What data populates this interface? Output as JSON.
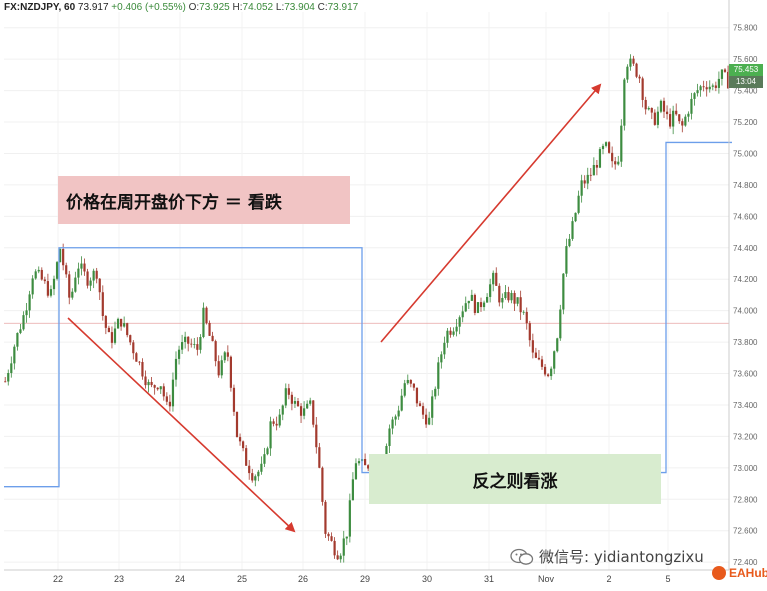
{
  "header": {
    "symbol": "FX:NZDJPY, 60",
    "last": "73.917",
    "change": "+0.406 (+0.55%)",
    "o_label": "O:",
    "o_value": "73.925",
    "h_label": "H:",
    "h_value": "74.052",
    "l_label": "L:",
    "l_value": "73.904",
    "c_label": "C:",
    "c_value": "73.917"
  },
  "annotations": {
    "bearish": "价格在周开盘价下方 ＝ 看跌",
    "bullish": "反之则看涨"
  },
  "price_badge": {
    "price": "75.453",
    "time": "13:04"
  },
  "watermark": {
    "wechat": "微信号: yidiantongzixu",
    "brand": "EAHub"
  },
  "colors": {
    "up": "#3d8c40",
    "down": "#a33a2e",
    "weekly_open": "#6c9eea",
    "arrow": "#d63a2f",
    "ref_line": "#e8a3a3",
    "badge_up": "#4caf50",
    "badge_time": "#5a7a5a"
  },
  "chart_data": {
    "type": "candlestick",
    "y_axis": {
      "range": [
        72.35,
        75.9
      ],
      "ticks": [
        "72.400",
        "72.600",
        "72.800",
        "73.000",
        "73.200",
        "73.400",
        "73.600",
        "73.800",
        "74.000",
        "74.200",
        "74.400",
        "74.600",
        "74.800",
        "75.000",
        "75.200",
        "75.400",
        "75.600",
        "75.800"
      ]
    },
    "x_axis": {
      "ticks": [
        "22",
        "23",
        "24",
        "25",
        "26",
        "29",
        "30",
        "31",
        "Nov",
        "2",
        "5"
      ]
    },
    "price_path": [
      [
        0,
        73.55
      ],
      [
        10,
        73.8
      ],
      [
        20,
        74.0
      ],
      [
        28,
        74.25
      ],
      [
        36,
        74.2
      ],
      [
        46,
        74.1
      ],
      [
        55,
        74.4
      ],
      [
        65,
        74.05
      ],
      [
        72,
        74.3
      ],
      [
        82,
        74.2
      ],
      [
        92,
        74.25
      ],
      [
        98,
        73.95
      ],
      [
        105,
        73.8
      ],
      [
        115,
        73.95
      ],
      [
        125,
        73.8
      ],
      [
        135,
        73.65
      ],
      [
        145,
        73.5
      ],
      [
        155,
        73.55
      ],
      [
        163,
        73.35
      ],
      [
        172,
        73.75
      ],
      [
        182,
        73.8
      ],
      [
        192,
        73.75
      ],
      [
        198,
        73.98
      ],
      [
        206,
        73.8
      ],
      [
        214,
        73.6
      ],
      [
        222,
        73.75
      ],
      [
        232,
        73.2
      ],
      [
        240,
        73.05
      ],
      [
        248,
        72.95
      ],
      [
        258,
        73.0
      ],
      [
        266,
        73.3
      ],
      [
        274,
        73.3
      ],
      [
        282,
        73.5
      ],
      [
        290,
        73.4
      ],
      [
        298,
        73.35
      ],
      [
        306,
        73.4
      ],
      [
        314,
        73.0
      ],
      [
        320,
        72.6
      ],
      [
        328,
        72.5
      ],
      [
        334,
        72.45
      ],
      [
        342,
        72.6
      ],
      [
        350,
        73.05
      ],
      [
        360,
        73.0
      ],
      [
        368,
        73.05
      ],
      [
        376,
        72.95
      ],
      [
        384,
        73.25
      ],
      [
        392,
        73.35
      ],
      [
        400,
        73.55
      ],
      [
        408,
        73.5
      ],
      [
        416,
        73.35
      ],
      [
        424,
        73.3
      ],
      [
        432,
        73.6
      ],
      [
        440,
        73.85
      ],
      [
        448,
        73.9
      ],
      [
        456,
        74.0
      ],
      [
        464,
        74.1
      ],
      [
        472,
        74.0
      ],
      [
        480,
        74.1
      ],
      [
        488,
        74.2
      ],
      [
        496,
        74.05
      ],
      [
        504,
        74.1
      ],
      [
        512,
        74.05
      ],
      [
        520,
        73.95
      ],
      [
        528,
        73.7
      ],
      [
        536,
        73.65
      ],
      [
        544,
        73.6
      ],
      [
        552,
        73.85
      ],
      [
        560,
        74.35
      ],
      [
        568,
        74.55
      ],
      [
        576,
        74.8
      ],
      [
        584,
        74.85
      ],
      [
        592,
        74.95
      ],
      [
        600,
        75.05
      ],
      [
        608,
        74.9
      ],
      [
        614,
        75.0
      ],
      [
        620,
        75.6
      ],
      [
        628,
        75.55
      ],
      [
        634,
        75.5
      ],
      [
        640,
        75.3
      ],
      [
        648,
        75.2
      ],
      [
        656,
        75.3
      ],
      [
        664,
        75.2
      ],
      [
        670,
        75.25
      ],
      [
        676,
        75.15
      ],
      [
        684,
        75.3
      ],
      [
        692,
        75.4
      ],
      [
        700,
        75.45
      ],
      [
        708,
        75.42
      ],
      [
        716,
        75.5
      ],
      [
        724,
        75.45
      ]
    ],
    "weekly_open": [
      {
        "from": 0,
        "to": 55,
        "price": 72.88
      },
      {
        "from": 55,
        "to": 358,
        "price": 74.4
      },
      {
        "from": 358,
        "to": 662,
        "price": 72.97
      },
      {
        "from": 662,
        "to": 728,
        "price": 75.07
      }
    ],
    "reference_price": 73.92
  }
}
